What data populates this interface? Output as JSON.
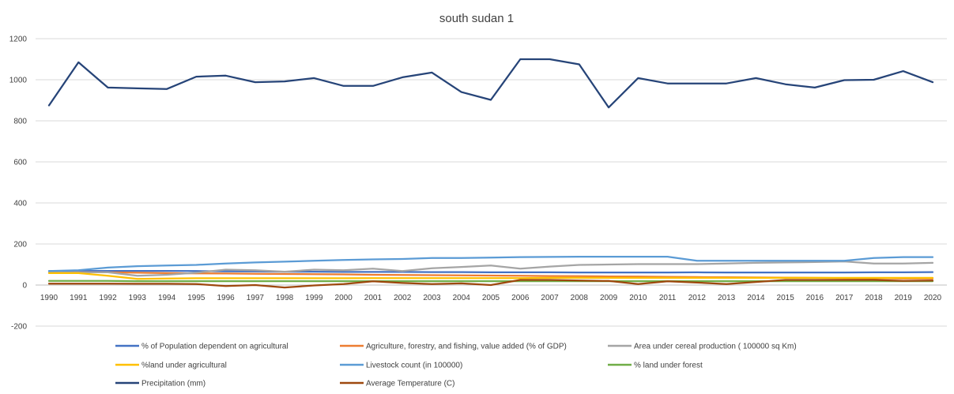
{
  "chart_data": {
    "type": "line",
    "title": "south sudan 1",
    "xlabel": "",
    "ylabel": "",
    "ylim": [
      -200,
      1200
    ],
    "yticks": [
      -200,
      0,
      200,
      400,
      600,
      800,
      1000,
      1200
    ],
    "grid": "horizontal",
    "legend_position": "bottom",
    "x": [
      "1990",
      "1991",
      "1992",
      "1993",
      "1994",
      "1995",
      "1996",
      "1997",
      "1998",
      "1999",
      "2000",
      "2001",
      "2002",
      "2003",
      "2004",
      "2005",
      "2006",
      "2007",
      "2008",
      "2009",
      "2010",
      "2011",
      "2012",
      "2013",
      "2014",
      "2015",
      "2016",
      "2017",
      "2018",
      "2019",
      "2020"
    ],
    "series": [
      {
        "name": "% of Population dependent on agricultural",
        "color": "#4472C4",
        "values": [
          68,
          68,
          69,
          69,
          69,
          68,
          67,
          66,
          65,
          65,
          64,
          64,
          64,
          63,
          63,
          62,
          62,
          62,
          61,
          61,
          61,
          61,
          62,
          61,
          61,
          61,
          61,
          61,
          62,
          62,
          63
        ]
      },
      {
        "name": "Agriculture, forestry, and fishing, value added (% of GDP)",
        "color": "#ED7D31",
        "values": [
          60,
          62,
          62,
          60,
          58,
          57,
          56,
          55,
          54,
          53,
          52,
          50,
          49,
          48,
          47,
          46,
          45,
          44,
          43,
          42,
          41,
          40,
          39,
          38,
          37,
          36,
          35,
          34,
          33,
          32,
          32
        ]
      },
      {
        "name": "Area under cereal production ( 100000 sq Km)",
        "color": "#A5A5A5",
        "values": [
          60,
          62,
          62,
          45,
          50,
          60,
          75,
          72,
          65,
          75,
          72,
          80,
          68,
          82,
          88,
          95,
          80,
          90,
          98,
          100,
          102,
          102,
          102,
          105,
          108,
          110,
          112,
          115,
          105,
          105,
          108
        ]
      },
      {
        "name": "%land under agricultural",
        "color": "#FFC000",
        "values": [
          58,
          58,
          45,
          30,
          32,
          33,
          33,
          33,
          33,
          33,
          33,
          34,
          34,
          34,
          34,
          34,
          34,
          35,
          35,
          35,
          35,
          35,
          35,
          35,
          35,
          35,
          35,
          35,
          35,
          35,
          35
        ]
      },
      {
        "name": "Livestock count (in 100000)",
        "color": "#5B9BD5",
        "values": [
          68,
          72,
          85,
          92,
          95,
          98,
          105,
          110,
          114,
          118,
          122,
          125,
          127,
          132,
          132,
          134,
          136,
          137,
          138,
          138,
          138,
          138,
          118,
          118,
          118,
          118,
          118,
          118,
          132,
          136,
          136
        ]
      },
      {
        "name": "% land under forest",
        "color": "#70AD47",
        "values": [
          20,
          20,
          20,
          19,
          19,
          19,
          19,
          19,
          19,
          19,
          19,
          19,
          19,
          19,
          19,
          19,
          19,
          19,
          19,
          19,
          19,
          19,
          19,
          19,
          19,
          19,
          19,
          19,
          19,
          19,
          19
        ]
      },
      {
        "name": "Precipitation (mm)",
        "color": "#264478",
        "values": [
          875,
          1085,
          962,
          958,
          955,
          1015,
          1020,
          988,
          992,
          1008,
          970,
          970,
          1012,
          1035,
          940,
          902,
          1100,
          1100,
          1075,
          865,
          1008,
          982,
          982,
          982,
          1008,
          978,
          962,
          998,
          1000,
          1042,
          988
        ]
      },
      {
        "name": "Average Temperature (C)",
        "color": "#9E480E",
        "values": [
          7,
          7,
          7,
          6,
          6,
          5,
          -5,
          0,
          -12,
          -2,
          5,
          18,
          10,
          5,
          8,
          0,
          25,
          25,
          22,
          20,
          5,
          18,
          12,
          5,
          15,
          25,
          25,
          25,
          25,
          20,
          22
        ]
      }
    ]
  }
}
